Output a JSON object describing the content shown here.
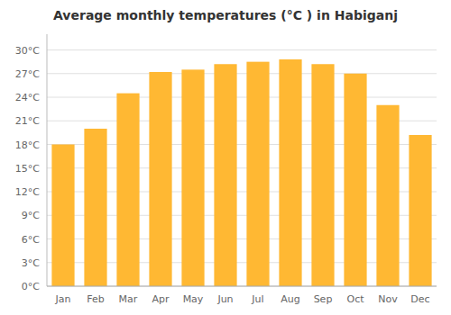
{
  "chart_data": {
    "type": "bar",
    "title": "Average monthly temperatures (°C ) in Habiganj",
    "categories": [
      "Jan",
      "Feb",
      "Mar",
      "Apr",
      "May",
      "Jun",
      "Jul",
      "Aug",
      "Sep",
      "Oct",
      "Nov",
      "Dec"
    ],
    "values": [
      18.0,
      20.0,
      24.5,
      27.2,
      27.5,
      28.2,
      28.5,
      28.8,
      28.2,
      27.0,
      23.0,
      19.2
    ],
    "color": "#FFB833",
    "ylim": [
      0,
      32
    ],
    "yticks": [
      {
        "value": 0,
        "label": "0°C"
      },
      {
        "value": 3,
        "label": "3°C"
      },
      {
        "value": 6,
        "label": "6°C"
      },
      {
        "value": 9,
        "label": "9°C"
      },
      {
        "value": 12,
        "label": "12°C"
      },
      {
        "value": 15,
        "label": "15°C"
      },
      {
        "value": 18,
        "label": "18°C"
      },
      {
        "value": 21,
        "label": "21°C"
      },
      {
        "value": 24,
        "label": "24°C"
      },
      {
        "value": 27,
        "label": "27°C"
      },
      {
        "value": 30,
        "label": "30°C"
      }
    ],
    "grid": true
  }
}
